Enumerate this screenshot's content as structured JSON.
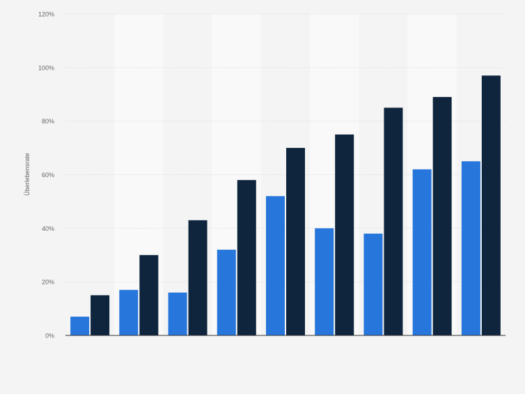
{
  "chart_data": {
    "type": "bar",
    "ylabel": "Überlebensrate",
    "xlabel": "",
    "ylim": [
      0,
      120
    ],
    "yticks": [
      "0%",
      "20%",
      "40%",
      "60%",
      "80%",
      "100%",
      "120%"
    ],
    "ytick_values": [
      0,
      20,
      40,
      60,
      80,
      100,
      120
    ],
    "grid": true,
    "legend": "none",
    "categories": [
      "",
      "",
      "",
      "",
      "",
      "",
      "",
      "",
      ""
    ],
    "series": [
      {
        "values": [
          7,
          17,
          16,
          32,
          52,
          40,
          38,
          62,
          65
        ],
        "color": "#2776db"
      },
      {
        "values": [
          15,
          30,
          43,
          58,
          70,
          75,
          85,
          89,
          97
        ],
        "color": "#0f253d"
      }
    ],
    "colors": {
      "background": "#f4f4f4",
      "band": "#f9f9f9",
      "grid": "#d6d6d6",
      "axis": "#333333",
      "text": "#666666"
    }
  }
}
